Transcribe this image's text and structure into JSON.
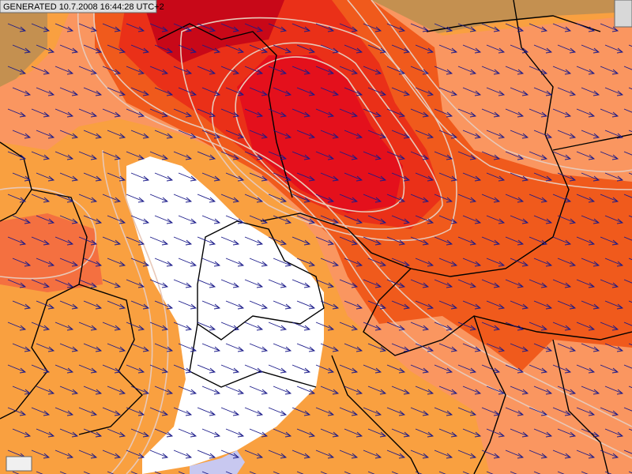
{
  "header": {
    "title": "GENERATED 10.7.2008 16:44:28 UTC+2"
  }
}
